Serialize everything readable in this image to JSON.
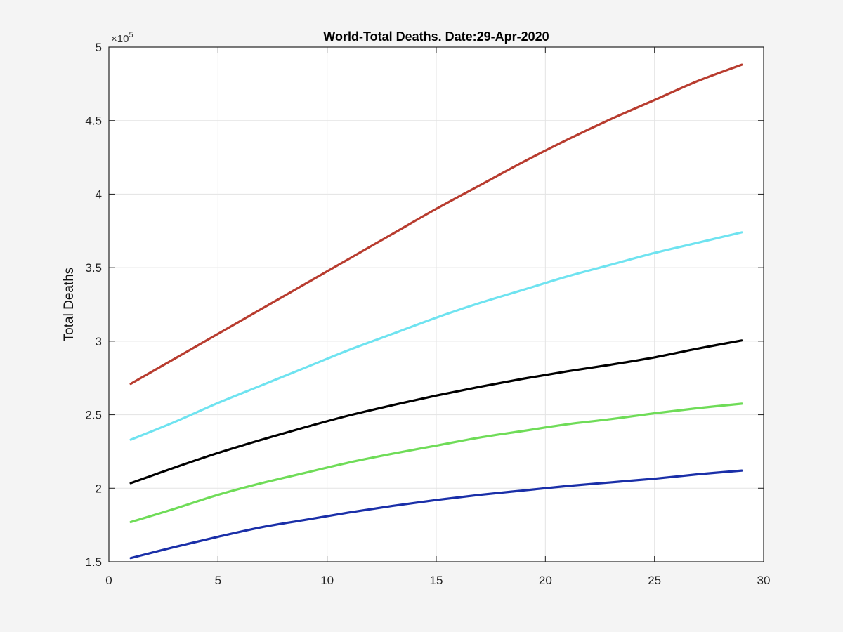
{
  "chart_data": {
    "type": "line",
    "title": "World-Total Deaths. Date:29-Apr-2020",
    "xlabel": "",
    "ylabel": "Total Deaths",
    "xlim": [
      0,
      30
    ],
    "ylim": [
      150000,
      500000
    ],
    "x_ticks": [
      0,
      5,
      10,
      15,
      20,
      25,
      30
    ],
    "y_ticks": [
      150000,
      200000,
      250000,
      300000,
      350000,
      400000,
      450000,
      500000
    ],
    "y_tick_labels": [
      "1.5",
      "2",
      "2.5",
      "3",
      "3.5",
      "4",
      "4.5",
      "5"
    ],
    "y_exponent": {
      "base": "×10",
      "power": "5"
    },
    "grid": true,
    "legend": "none",
    "x": [
      1,
      3,
      5,
      7,
      9,
      11,
      13,
      15,
      17,
      19,
      21,
      23,
      25,
      27,
      29
    ],
    "series": [
      {
        "color": "#b83c2f",
        "values": [
          271000,
          288000,
          305000,
          322000,
          339000,
          356000,
          373000,
          390000,
          406000,
          422000,
          437000,
          451000,
          464000,
          477000,
          488000
        ]
      },
      {
        "color": "#6fe3f0",
        "values": [
          233000,
          245000,
          258000,
          270000,
          282000,
          294000,
          305000,
          316000,
          326000,
          335000,
          344000,
          352000,
          360000,
          367000,
          374000
        ]
      },
      {
        "color": "#000000",
        "values": [
          203500,
          214000,
          224000,
          233000,
          241500,
          249500,
          256500,
          263000,
          269000,
          274500,
          279500,
          284000,
          289000,
          295000,
          300500
        ]
      },
      {
        "color": "#6fdc58",
        "values": [
          177000,
          186000,
          195500,
          203500,
          210500,
          217500,
          223500,
          229000,
          234500,
          239000,
          243500,
          247000,
          251000,
          254500,
          257500
        ]
      },
      {
        "color": "#1a2fa8",
        "values": [
          152500,
          160000,
          167000,
          173500,
          178500,
          183500,
          188000,
          192000,
          195500,
          198500,
          201500,
          204000,
          206500,
          209500,
          212000
        ]
      }
    ]
  }
}
